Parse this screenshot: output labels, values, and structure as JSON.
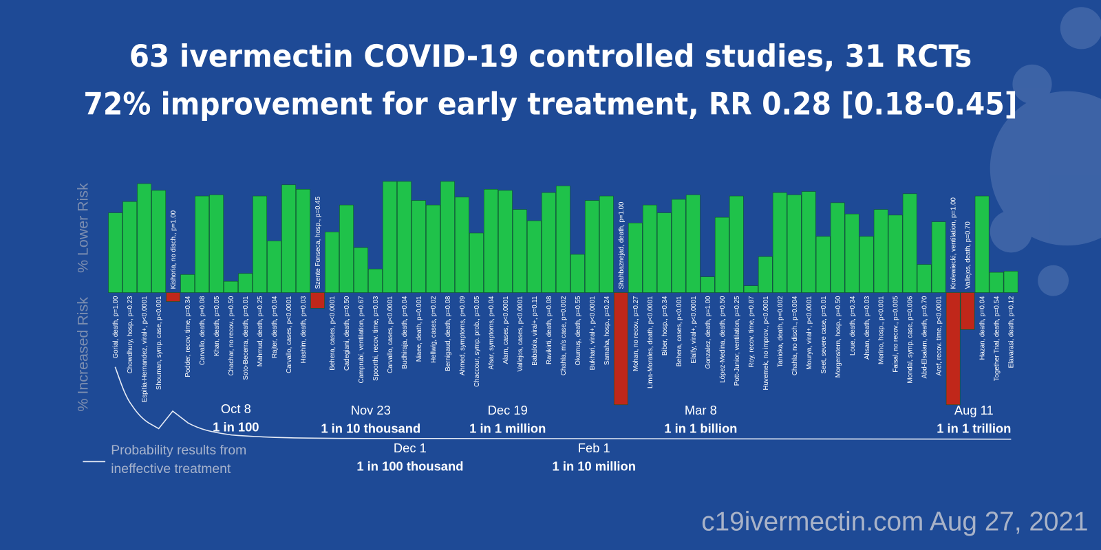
{
  "chart_data": {
    "type": "bar",
    "title": "63 ivermectin COVID-19 controlled studies, 31 RCTs",
    "subtitle": "72% improvement for early treatment, RR 0.28 [0.18-0.45]",
    "y_labels": [
      "% Increased Risk",
      "% Lower Risk"
    ],
    "ylim": [
      -100,
      100
    ],
    "pos_color": "#1fc24a",
    "neg_color": "#c0271a",
    "categories": [
      "Gorial, death, p=1.00",
      "Chowdhury, hosp., p=0.23",
      "Espitia-Hernandez, viral+, p<0.0001",
      "Shouman, symp. case, p<0.001",
      "Kishoria, no disch., p=1.00",
      "Podder, recov. time, p=0.34",
      "Carvallo, death, p=0.08",
      "Khan, death, p=0.05",
      "Chachar, no recov., p=0.50",
      "Soto-Becerra, death, p=0.01",
      "Mahmud, death, p=0.25",
      "Rajter, death, p=0.04",
      "Carvallo, cases, p<0.0001",
      "Hashim, death, p=0.03",
      "Szente Fonseca, hosp., p=0.45",
      "Behera, cases, p<0.0001",
      "Cadegiani, death, p=0.50",
      "Camprubí, ventilation, p=0.67",
      "Spoorthi, recov. time, p=0.03",
      "Carvallo, cases, p<0.0001",
      "Budhiraja, death, p=0.04",
      "Niaee, death, p=0.001",
      "Hellwig, cases, p=0.02",
      "Bernigaud, death, p=0.08",
      "Ahmed, symptoms, p=0.09",
      "Chaccour, symp. prob., p=0.05",
      "Afsar, symptoms, p=0.04",
      "Alam, cases, p<0.0001",
      "Vallejos, cases, p<0.0001",
      "Babalola, viral+, p=0.11",
      "Ravikirti, death, p=0.08",
      "Chahla, m/s case, p=0.002",
      "Okumuş, death, p=0.55",
      "Bukhari, viral+, p<0.0001",
      "Samaha, hosp., p=0.24",
      "Shahbaznejad, death, p=1.00",
      "Mohan, no recov., p=0.27",
      "Lima-Morales, death, p<0.0001",
      "Biber, hosp., p=0.34",
      "Behera, cases, p<0.001",
      "Elalfy, viral+, p<0.0001",
      "Gonzalez, death, p=1.00",
      "López-Medina, death, p=0.50",
      "Pott-Junior, ventilation, p=0.25",
      "Roy, recov. time, p=0.87",
      "Huvemek, no improv., p<0.0001",
      "Tanioka, death, p=0.002",
      "Chahla, no disch., p=0.004",
      "Mourya, viral+, p<0.0001",
      "Seet, severe case, p=0.01",
      "Morgenstern, hosp., p=0.50",
      "Loue, death, p=0.34",
      "Ahsan, death, p=0.03",
      "Merino, hosp., p<0.001",
      "Faisal, no recov., p=0.005",
      "Mondal, symp. case, p=0.006",
      "Abd-Elsalam, death, p=0.70",
      "Aref, recov. time, p<0.0001",
      "Krolewiecki, ventilation, p=1.00",
      "Vallejos, death, p=0.70",
      "Hazan, death, p=0.04",
      "Together Trial, death, p=0.54",
      "Elavarasi, death, p=0.12"
    ],
    "values": [
      71,
      81,
      97,
      91,
      -8,
      16,
      86,
      87,
      10,
      17,
      86,
      46,
      96,
      92,
      -14,
      54,
      78,
      40,
      21,
      99,
      99,
      82,
      78,
      99,
      85,
      53,
      92,
      91,
      74,
      64,
      89,
      95,
      34,
      82,
      86,
      -100,
      62,
      78,
      71,
      83,
      87,
      14,
      67,
      86,
      6,
      32,
      89,
      87,
      90,
      50,
      80,
      70,
      50,
      74,
      69,
      88,
      25,
      63,
      -100,
      -33,
      86,
      18,
      19
    ],
    "annotations": [
      {
        "date": "Oct 8",
        "label": "1 in 100"
      },
      {
        "date": "Nov 23",
        "label": "1 in 10 thousand"
      },
      {
        "date": "Dec 19",
        "label": "1 in 1 million"
      },
      {
        "date": "Mar 8",
        "label": "1 in 1 billion"
      },
      {
        "date": "Aug 11",
        "label": "1 in 1 trillion"
      },
      {
        "date": "Dec 1",
        "label": "1 in 100 thousand"
      },
      {
        "date": "Feb 1",
        "label": "1 in 10 million"
      }
    ],
    "legend_lines": [
      "Probability results from",
      "ineffective treatment"
    ],
    "footer": "c19ivermectin.com Aug 27, 2021"
  }
}
